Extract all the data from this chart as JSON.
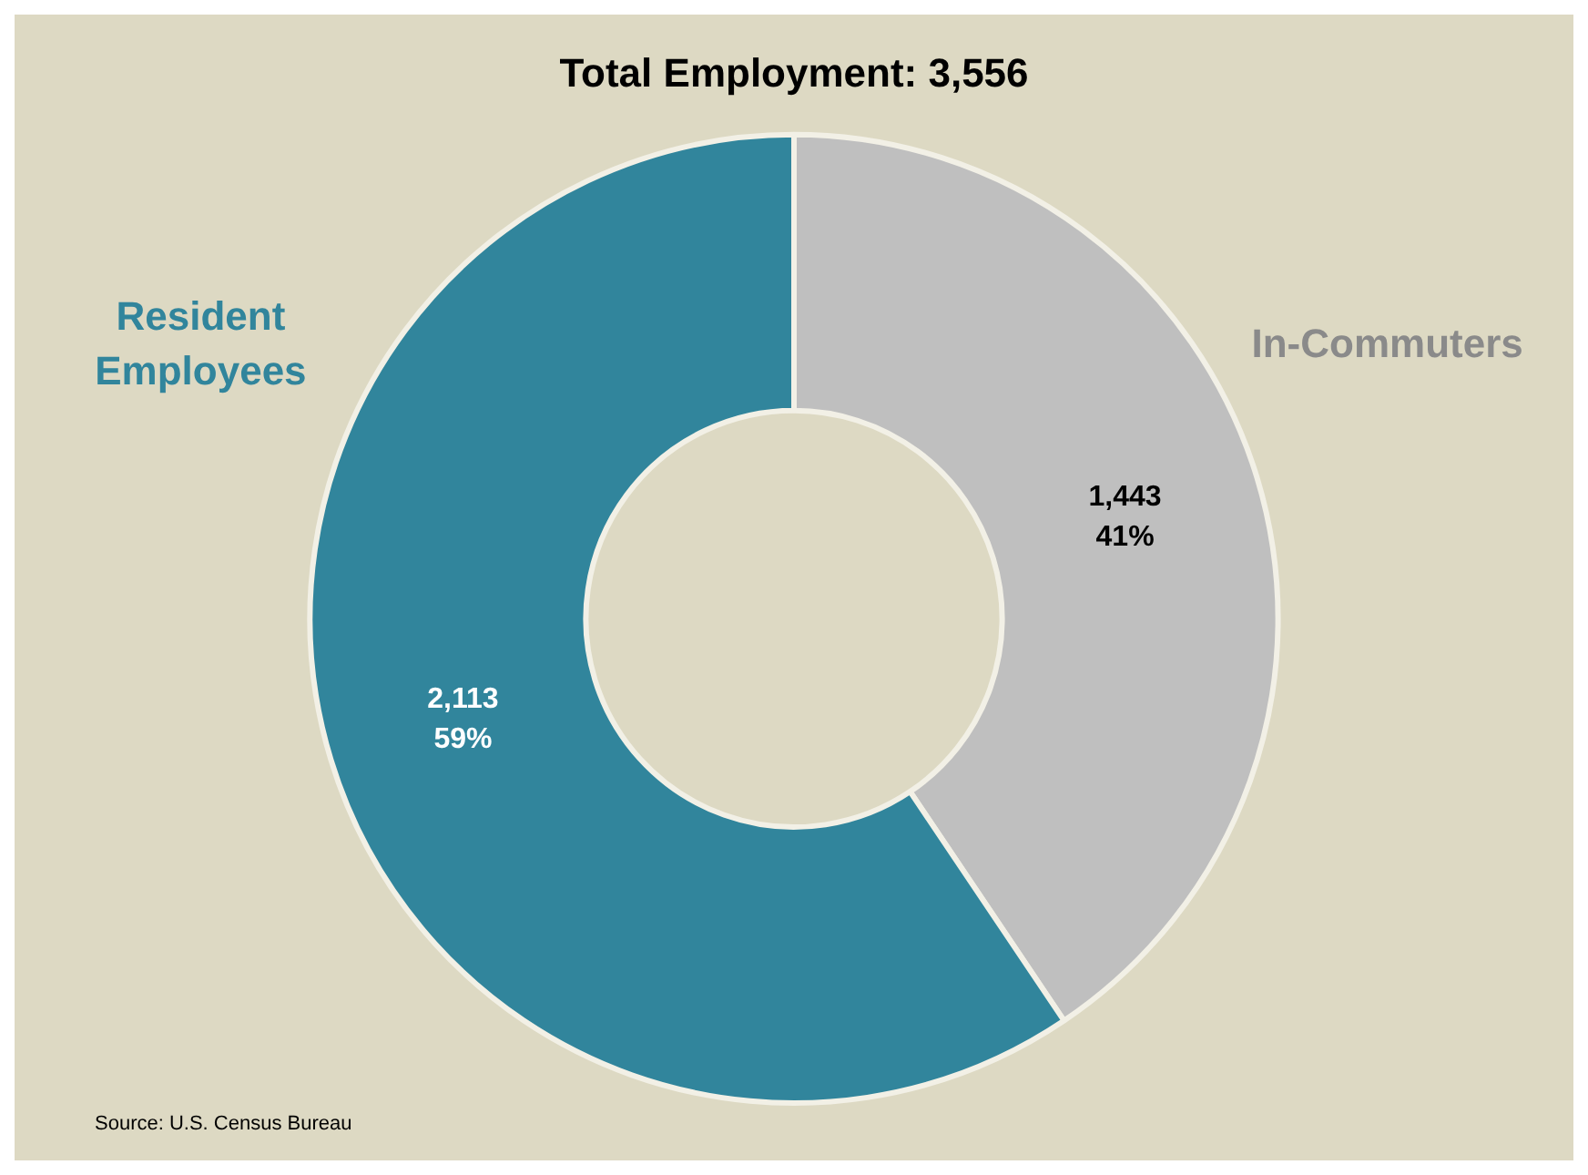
{
  "chart_data": {
    "type": "donut",
    "title": "Total Employment: 3,556",
    "categories": [
      "In-Commuters",
      "Resident Employees"
    ],
    "values": [
      1443,
      2113
    ],
    "colors": [
      "#bfbfbf",
      "#31859c"
    ],
    "value_labels": [
      "1,443\n41%",
      "2,113\n59%"
    ],
    "legend": false,
    "annotations": [
      "Source: U.S. Census Bureau"
    ]
  }
}
